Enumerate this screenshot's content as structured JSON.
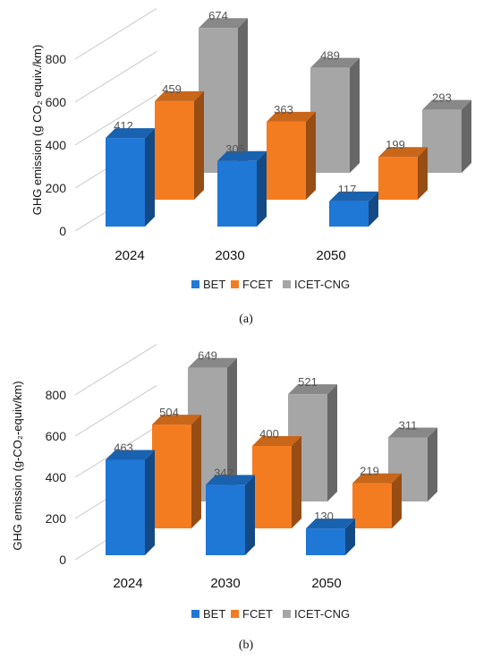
{
  "chart_data": [
    {
      "type": "bar",
      "caption": "(a)",
      "ylabel": "GHG emission (g CO₂ equiv./km)",
      "yticks": [
        "0",
        "200",
        "400",
        "600",
        "800"
      ],
      "ylim": [
        0,
        800
      ],
      "categories": [
        "2024",
        "2030",
        "2050"
      ],
      "series": [
        {
          "name": "BET",
          "values": [
            412,
            305,
            117
          ],
          "labels": [
            "412",
            "305",
            "117"
          ],
          "color": "#1f77d6"
        },
        {
          "name": "FCET",
          "values": [
            459,
            363,
            199
          ],
          "labels": [
            "459",
            "363",
            "199"
          ],
          "color": "#f47c20"
        },
        {
          "name": "ICET-CNG",
          "values": [
            674,
            489,
            293
          ],
          "labels": [
            "674",
            "489",
            "293"
          ],
          "color": "#a6a6a6"
        }
      ],
      "legend_position": "bottom",
      "grid": true
    },
    {
      "type": "bar",
      "caption": "(b)",
      "ylabel": "GHG emission (g-CO₂-equiv/km)",
      "yticks": [
        "0",
        "200",
        "400",
        "600",
        "800"
      ],
      "ylim": [
        0,
        800
      ],
      "categories": [
        "2024",
        "2030",
        "2050"
      ],
      "series": [
        {
          "name": "BET",
          "values": [
            463,
            342,
            130
          ],
          "labels": [
            "463",
            "342",
            "130"
          ],
          "color": "#1f77d6"
        },
        {
          "name": "FCET",
          "values": [
            504,
            400,
            219
          ],
          "labels": [
            "504",
            "400",
            "219"
          ],
          "color": "#f47c20"
        },
        {
          "name": "ICET-CNG",
          "values": [
            649,
            521,
            311
          ],
          "labels": [
            "649",
            "521",
            "311"
          ],
          "color": "#a6a6a6"
        }
      ],
      "legend_position": "bottom",
      "grid": true
    }
  ]
}
